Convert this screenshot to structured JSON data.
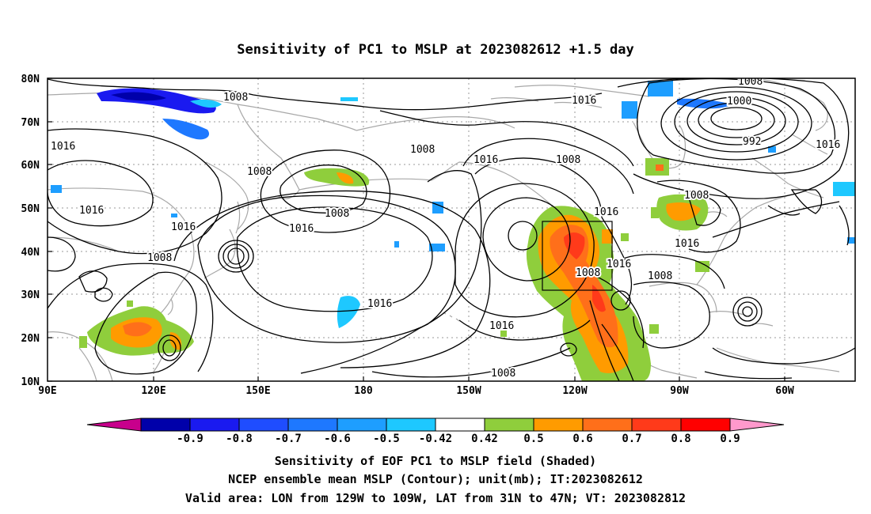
{
  "title": "Sensitivity of PC1 to MSLP at 2023082612 +1.5 day",
  "lat_labels": [
    "80N",
    "70N",
    "60N",
    "50N",
    "40N",
    "30N",
    "20N",
    "10N"
  ],
  "lon_labels": [
    "90E",
    "120E",
    "150E",
    "180",
    "150W",
    "120W",
    "90W",
    "60W"
  ],
  "isobar_labels": [
    "1008",
    "1016",
    "1000",
    "992",
    "1008",
    "1016",
    "1008",
    "1016",
    "1016",
    "1008",
    "1008",
    "1016",
    "1016",
    "1008",
    "1016",
    "1016",
    "1016",
    "1008",
    "1008",
    "1008",
    "1016",
    "1008",
    "1016",
    "1016"
  ],
  "colorbar": {
    "labels": [
      "-0.9",
      "-0.8",
      "-0.7",
      "-0.6",
      "-0.5",
      "-0.42",
      "0.42",
      "0.5",
      "0.6",
      "0.7",
      "0.8",
      "0.9"
    ],
    "colors": [
      "#c8008c",
      "#0000aa",
      "#1a1af0",
      "#1f4dff",
      "#1e78ff",
      "#1e9eff",
      "#1ec8ff",
      "#ffffff",
      "#8fce3c",
      "#ff9b00",
      "#ff6f1a",
      "#ff3a1a",
      "#ff0000",
      "#ff99cc"
    ]
  },
  "caption": {
    "line1": "Sensitivity of EOF PC1 to MSLP field (Shaded)",
    "line2": "NCEP ensemble mean MSLP (Contour); unit(mb); IT:2023082612",
    "line3": "Valid area: LON from 129W to 109W, LAT from 31N to 47N; VT: 2023082812"
  }
}
